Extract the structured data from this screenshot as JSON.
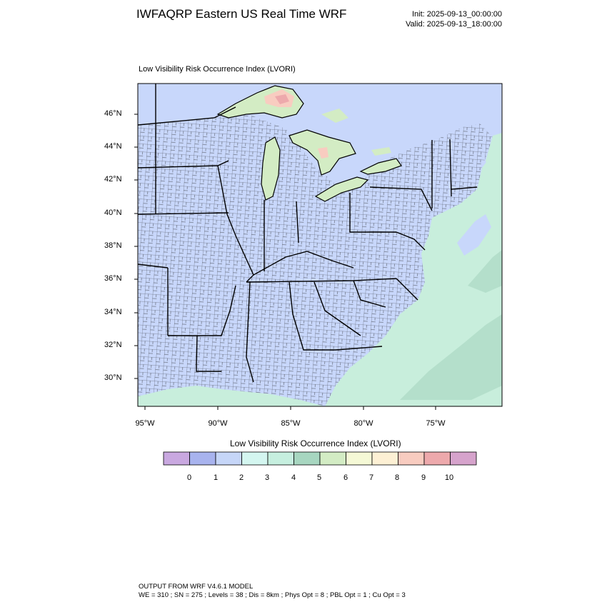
{
  "header": {
    "title": "IWFAQRP Eastern US Real Time WRF",
    "init": "Init: 2025-09-13_00:00:00",
    "valid": "Valid: 2025-09-13_18:00:00"
  },
  "map": {
    "subtitle": "Low Visibility Risk Occurrence Index   (LVORI)",
    "lat_labels": [
      "46°N",
      "44°N",
      "42°N",
      "40°N",
      "38°N",
      "36°N",
      "34°N",
      "32°N",
      "30°N"
    ],
    "lon_labels": [
      "95°W",
      "90°W",
      "85°W",
      "80°W",
      "75°W"
    ],
    "colors": {
      "land_low": "#c8d7fb",
      "ocean": "#c8eedc",
      "water_lake": "#c8d7fb",
      "county_lines": "#1a1a1a"
    }
  },
  "legend": {
    "title": "Low Visibility Risk Occurrence Index  (LVORI)",
    "labels": [
      "0",
      "1",
      "2",
      "3",
      "4",
      "5",
      "6",
      "7",
      "8",
      "9",
      "10"
    ],
    "colors": [
      "#c9a8e0",
      "#a8b3ee",
      "#c6d6f8",
      "#d4f6f0",
      "#c6efdf",
      "#a7d6c0",
      "#d3ecc4",
      "#f5f9d6",
      "#fdf0d4",
      "#f8ccc0",
      "#eda9ac",
      "#d6a3cc"
    ]
  },
  "footer": {
    "line1": "OUTPUT FROM WRF V4.6.1 MODEL",
    "line2": "WE = 310 ; SN = 275 ; Levels = 38 ; Dis = 8km ; Phys Opt = 8 ; PBL Opt = 1 ; Cu Opt = 3"
  }
}
